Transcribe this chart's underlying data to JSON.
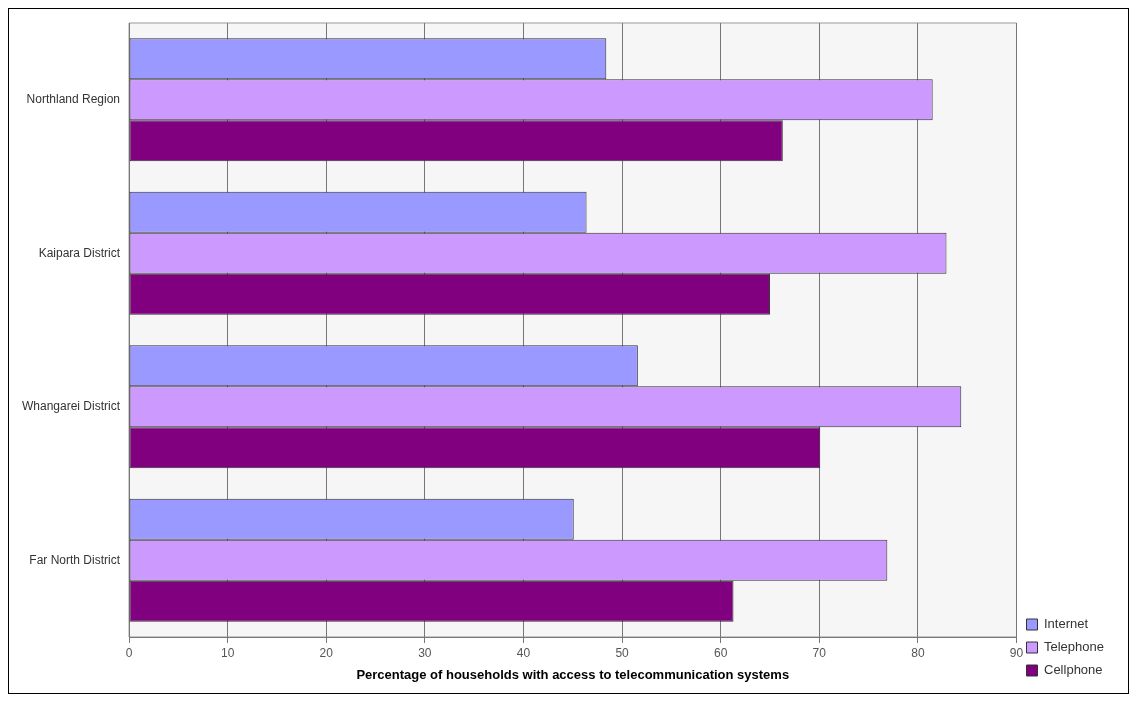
{
  "chart_data": {
    "type": "bar",
    "orientation": "horizontal",
    "xlabel": "Percentage of households with access to telecommunication systems",
    "categories": [
      "Northland Region",
      "Kaipara District",
      "Whangarei District",
      "Far North District"
    ],
    "series": [
      {
        "name": "Internet",
        "color": "#9999ff",
        "values": [
          48.4,
          46.4,
          51.6,
          45.1
        ]
      },
      {
        "name": "Telephone",
        "color": "#cc99ff",
        "values": [
          81.5,
          82.9,
          84.4,
          76.9
        ]
      },
      {
        "name": "Cellphone",
        "color": "#800080",
        "values": [
          66.3,
          65.0,
          70.1,
          61.3
        ]
      }
    ],
    "xlim": [
      0,
      90
    ],
    "xticks": [
      0,
      10,
      20,
      30,
      40,
      50,
      60,
      70,
      80,
      90
    ],
    "grid": "x",
    "legend": "bottom right"
  }
}
